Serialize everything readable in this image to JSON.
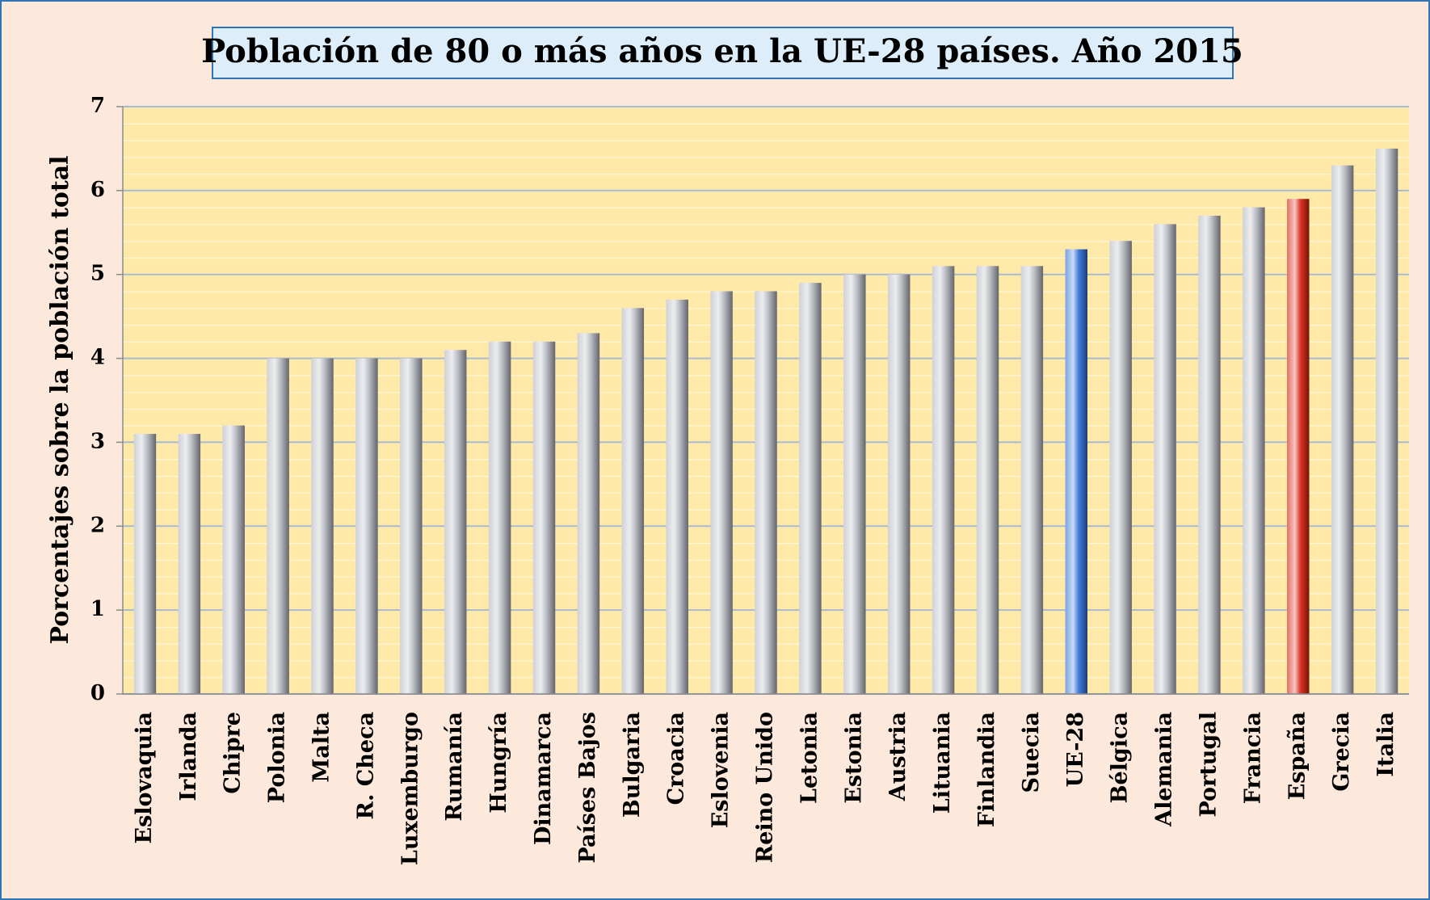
{
  "chart_data": {
    "type": "bar",
    "title": "Población de 80 o más años en la UE-28 países. Año 2015",
    "y_label": "Porcentajes sobre la población total",
    "categories": [
      "Eslovaquia",
      "Irlanda",
      "Chipre",
      "Polonia",
      "Malta",
      "R. Checa",
      "Luxemburgo",
      "Rumanía",
      "Hungría",
      "Dinamarca",
      "Países Bajos",
      "Bulgaria",
      "Croacia",
      "Eslovenia",
      "Reino Unido",
      "Letonia",
      "Estonia",
      "Austria",
      "Lituania",
      "Finlandia",
      "Suecia",
      "UE-28",
      "Bélgica",
      "Alemania",
      "Portugal",
      "Francia",
      "España",
      "Grecia",
      "Italia"
    ],
    "values": [
      3.1,
      3.1,
      3.2,
      4.0,
      4.0,
      4.0,
      4.0,
      4.1,
      4.2,
      4.2,
      4.3,
      4.6,
      4.7,
      4.8,
      4.8,
      4.9,
      5.0,
      5.0,
      5.1,
      5.1,
      5.1,
      5.3,
      5.4,
      5.6,
      5.7,
      5.8,
      5.9,
      6.3,
      6.5
    ],
    "colors": [
      "#b4b8c0",
      "#b4b8c0",
      "#b4b8c0",
      "#b4b8c0",
      "#b4b8c0",
      "#b4b8c0",
      "#b4b8c0",
      "#b4b8c0",
      "#b4b8c0",
      "#b4b8c0",
      "#b4b8c0",
      "#b4b8c0",
      "#b4b8c0",
      "#b4b8c0",
      "#b4b8c0",
      "#b4b8c0",
      "#b4b8c0",
      "#b4b8c0",
      "#b4b8c0",
      "#b4b8c0",
      "#b4b8c0",
      "#2f6fd8",
      "#b4b8c0",
      "#b4b8c0",
      "#b4b8c0",
      "#b4b8c0",
      "#d8200e",
      "#b4b8c0",
      "#b4b8c0"
    ],
    "ylim": [
      0,
      7
    ],
    "yticks": [
      0,
      1,
      2,
      3,
      4,
      5,
      6,
      7
    ],
    "grid": true
  }
}
